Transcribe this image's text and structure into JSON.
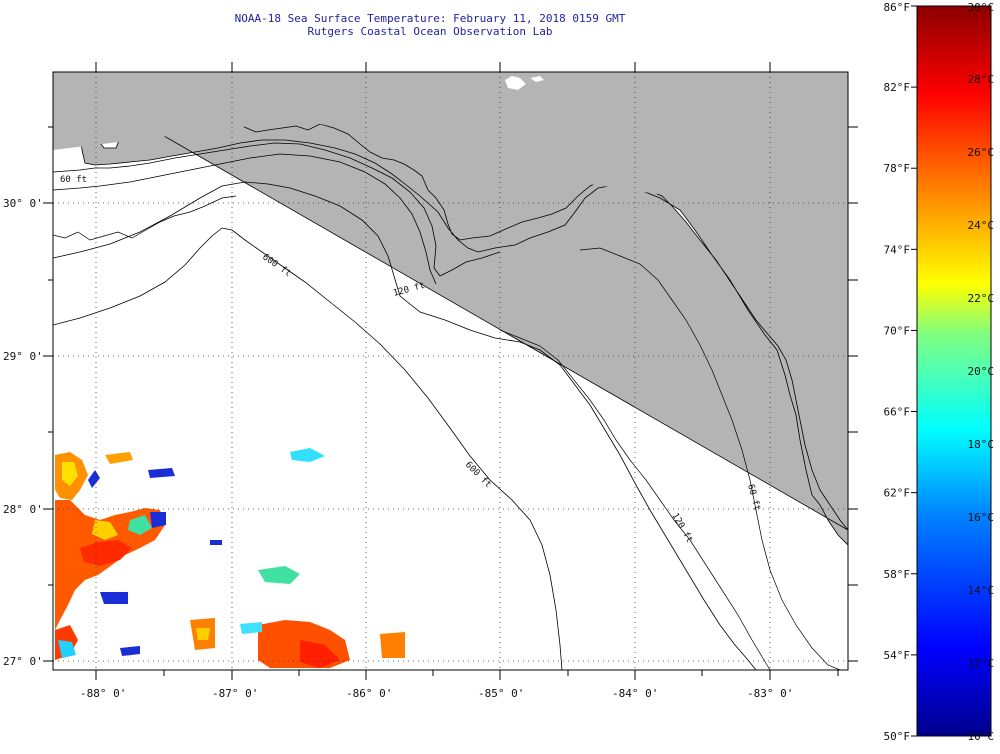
{
  "header": {
    "title": "NOAA-18 Sea Surface Temperature:  February 11, 2018 0159 GMT",
    "subtitle": "Rutgers Coastal Ocean Observation Lab"
  },
  "map": {
    "lon_labels": [
      "-88° 0'",
      "-87° 0'",
      "-86° 0'",
      "-85° 0'",
      "-84° 0'",
      "-83° 0'"
    ],
    "lat_labels": [
      "30° 0'",
      "29° 0'",
      "28° 0'",
      "27° 0'"
    ],
    "isobaths": [
      "60 ft",
      "120 ft",
      "600 ft",
      "600 ft",
      "120 ft",
      "60 ft"
    ],
    "land_color": "#b4b4b4",
    "ocean_color": "#ffffff"
  },
  "colorbar": {
    "f_labels": [
      "86°F",
      "82°F",
      "78°F",
      "74°F",
      "70°F",
      "66°F",
      "62°F",
      "58°F",
      "54°F",
      "50°F"
    ],
    "c_labels": [
      "30°C",
      "28°C",
      "26°C",
      "24°C",
      "22°C",
      "20°C",
      "18°C",
      "16°C",
      "14°C",
      "12°C",
      "10°C"
    ],
    "range_c": [
      10,
      30
    ],
    "range_f": [
      50,
      86
    ],
    "colors": [
      "#00008c",
      "#0000ff",
      "#0080ff",
      "#00ffff",
      "#80ff80",
      "#ffff00",
      "#ff8000",
      "#ff0000",
      "#8c0000"
    ]
  }
}
